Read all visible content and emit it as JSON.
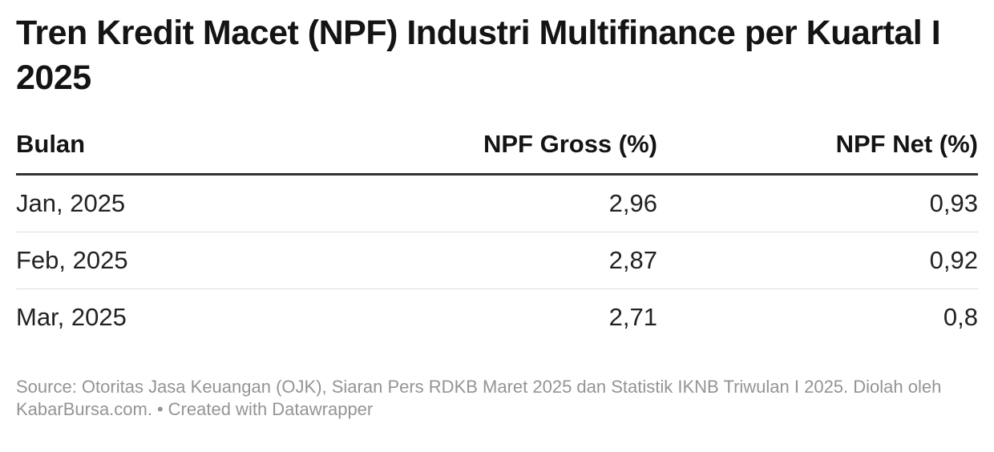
{
  "title": "Tren Kredit Macet (NPF) Industri Multifinance per Kuartal I 2025",
  "table": {
    "columns": [
      {
        "label": "Bulan"
      },
      {
        "label": "NPF Gross (%)"
      },
      {
        "label": "NPF Net (%)"
      }
    ],
    "rows": [
      {
        "bulan": "Jan, 2025",
        "npf_gross": "2,96",
        "npf_net": "0,93"
      },
      {
        "bulan": "Feb, 2025",
        "npf_gross": "2,87",
        "npf_net": "0,92"
      },
      {
        "bulan": "Mar, 2025",
        "npf_gross": "2,71",
        "npf_net": "0,8"
      }
    ]
  },
  "footer": {
    "source": "Source: Otoritas Jasa Keuangan (OJK), Siaran Pers RDKB Maret 2025 dan Statistik IKNB Triwulan I 2025. Diolah oleh KabarBursa.com.",
    "separator": "•",
    "attribution": "Created with Datawrapper"
  },
  "chart_data": {
    "type": "table",
    "title": "Tren Kredit Macet (NPF) Industri Multifinance per Kuartal I 2025",
    "columns": [
      "Bulan",
      "NPF Gross (%)",
      "NPF Net (%)"
    ],
    "rows": [
      [
        "Jan, 2025",
        "2,96",
        "0,93"
      ],
      [
        "Feb, 2025",
        "2,87",
        "0,92"
      ],
      [
        "Mar, 2025",
        "2,71",
        "0,8"
      ]
    ],
    "categories": [
      "Jan, 2025",
      "Feb, 2025",
      "Mar, 2025"
    ],
    "series": [
      {
        "name": "NPF Gross (%)",
        "values": [
          2.96,
          2.87,
          2.71
        ]
      },
      {
        "name": "NPF Net (%)",
        "values": [
          0.93,
          0.92,
          0.8
        ]
      }
    ],
    "number_format": "decimal-comma",
    "source_note": "Source: Otoritas Jasa Keuangan (OJK), Siaran Pers RDKB Maret 2025 dan Statistik IKNB Triwulan I 2025. Diolah oleh KabarBursa.com. • Created with Datawrapper"
  },
  "colors": {
    "background": "#ffffff",
    "title_text": "#141414",
    "body_text": "#222222",
    "header_border": "#333333",
    "row_divider": "#dcdcdc",
    "footer_text": "#949494"
  }
}
